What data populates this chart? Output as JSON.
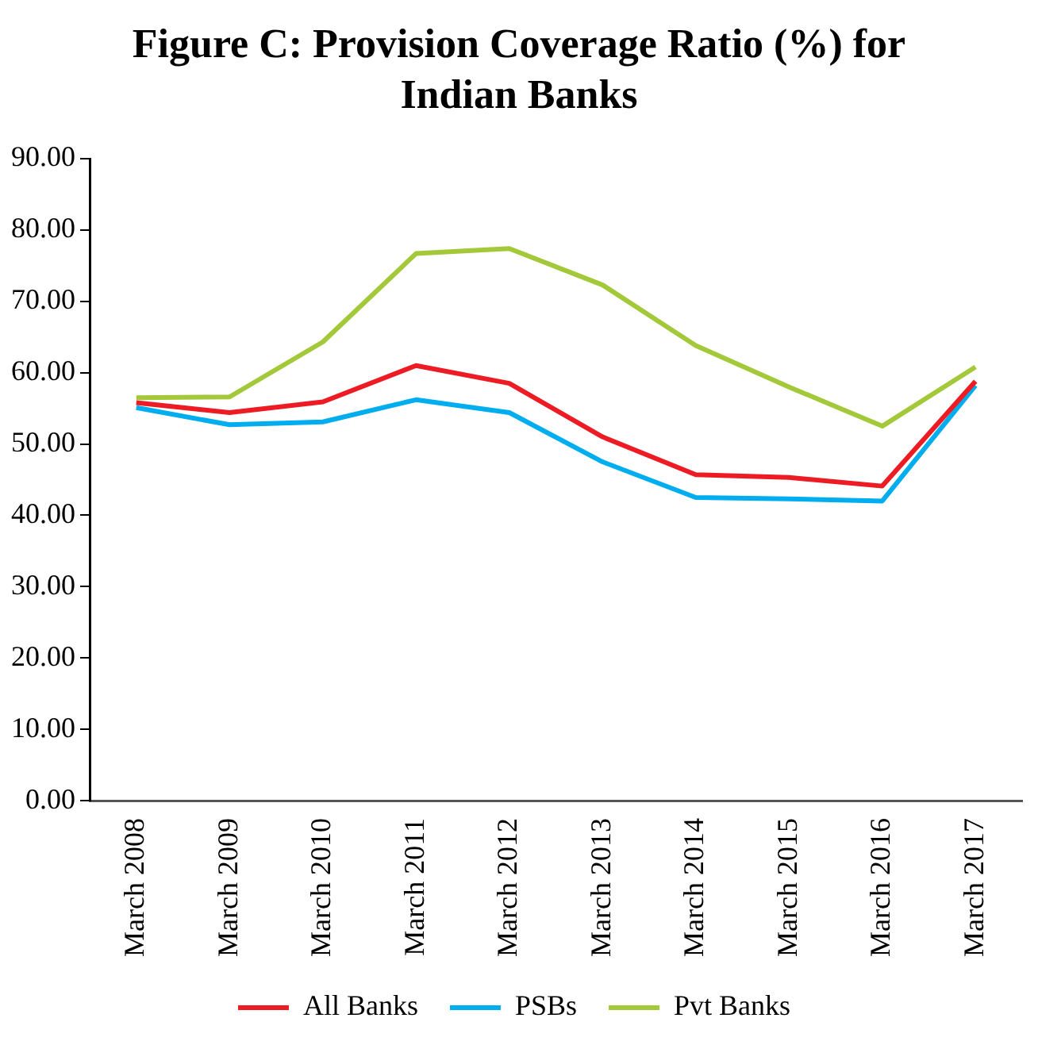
{
  "chart_data": {
    "type": "line",
    "title": "Figure C: Provision Coverage Ratio (%) for Indian Banks",
    "categories": [
      "March 2008",
      "March 2009",
      "March 2010",
      "March 2011",
      "March 2012",
      "March 2013",
      "March 2014",
      "March 2015",
      "March 2016",
      "March 2017"
    ],
    "series": [
      {
        "name": "All Banks",
        "color": "#ed1c24",
        "values": [
          55.8,
          54.4,
          55.9,
          61.0,
          58.5,
          51.0,
          45.7,
          45.3,
          44.1,
          58.8
        ]
      },
      {
        "name": "PSBs",
        "color": "#00aeef",
        "values": [
          55.1,
          52.7,
          53.1,
          56.2,
          54.4,
          47.5,
          42.5,
          42.3,
          42.0,
          58.2
        ]
      },
      {
        "name": "Pvt Banks",
        "color": "#a3c93a",
        "values": [
          56.5,
          56.6,
          64.3,
          76.7,
          77.4,
          72.3,
          63.8,
          58.0,
          52.5,
          60.8
        ]
      }
    ],
    "ylim": [
      0,
      90
    ],
    "yticks": [
      {
        "value": 0,
        "label": "0.00"
      },
      {
        "value": 10,
        "label": "10.00"
      },
      {
        "value": 20,
        "label": "20.00"
      },
      {
        "value": 30,
        "label": "30.00"
      },
      {
        "value": 40,
        "label": "40.00"
      },
      {
        "value": 50,
        "label": "50.00"
      },
      {
        "value": 60,
        "label": "60.00"
      },
      {
        "value": 70,
        "label": "70.00"
      },
      {
        "value": 80,
        "label": "80.00"
      },
      {
        "value": 90,
        "label": "90.00"
      }
    ],
    "grid": false,
    "legend": "bottom",
    "marker": "none",
    "line_style": "solid"
  }
}
